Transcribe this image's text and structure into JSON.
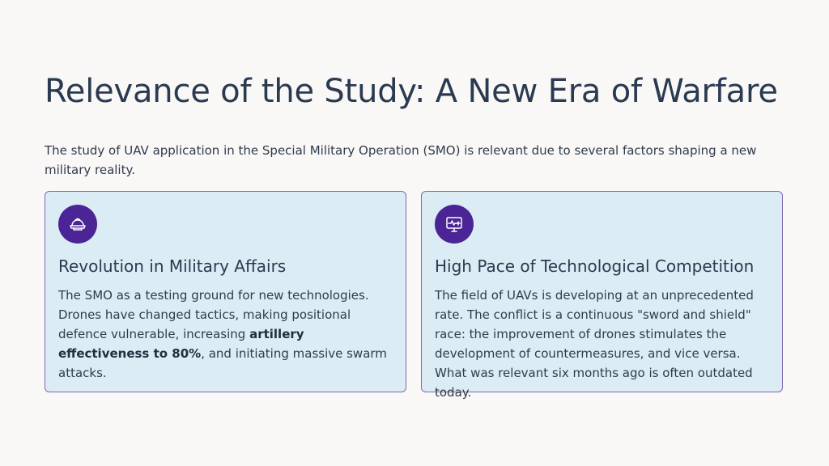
{
  "title": "Relevance of the Study: A New Era of Warfare",
  "intro": "The study of UAV application in the Special Military Operation (SMO) is relevant due to several factors shaping a new military reality.",
  "cards": [
    {
      "icon": "helmet-icon",
      "title": "Revolution in Military Affairs",
      "body_before": "The SMO as a testing ground for new technologies. Drones have changed tactics, making positional defence vulnerable, increasing ",
      "body_bold": "artillery effectiveness to 80%",
      "body_after": ", and initiating massive swarm attacks."
    },
    {
      "icon": "monitor-pulse-icon",
      "title": "High Pace of Technological Competition",
      "body": "The field of UAVs is developing at an unprecedented rate. The conflict is a continuous \"sword and shield\" race: the improvement of drones stimulates the development of countermeasures, and vice versa. What was relevant six months ago is often outdated today."
    }
  ],
  "colors": {
    "background": "#f9f8f6",
    "card_background": "#dcecf4",
    "card_border": "#7d68b4",
    "icon_circle": "#4b2496",
    "text": "#2f3b4c",
    "heading": "#2a3a50"
  }
}
